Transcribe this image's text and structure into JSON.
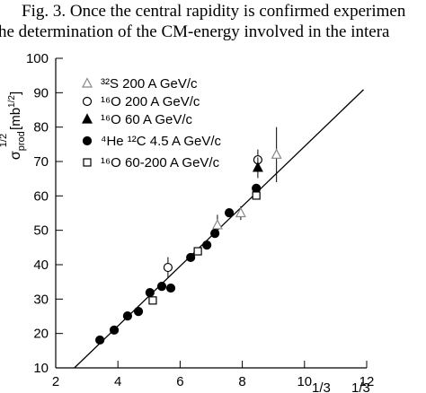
{
  "caption_lines": [
    "Fig. 3.  Once the central rapidity is confirmed experimen",
    "he determination of the CM-energy involved in the intera"
  ],
  "chart_data": {
    "type": "scatter",
    "y_label": {
      "symbol": "σ",
      "sub": "prod",
      "sup": "1/2",
      "unit": "[mb",
      "unit_sup": "1/2",
      "close": "]"
    },
    "x_label_fragments": [
      "1/3",
      "1/3"
    ],
    "xlim": [
      2,
      12
    ],
    "xticks": [
      2,
      4,
      6,
      8,
      10,
      12
    ],
    "ylim": [
      10,
      100
    ],
    "yticks": [
      10,
      20,
      30,
      40,
      50,
      60,
      70,
      80,
      90,
      100
    ],
    "series": [
      {
        "name": "³²S 200 A GeV/c",
        "marker": "triangle-open",
        "color": "#888888",
        "x": [
          7.2,
          7.95,
          9.1
        ],
        "values": [
          51.5,
          55,
          72
        ],
        "errors": [
          3,
          2,
          8
        ]
      },
      {
        "name": "¹⁶O 200 A GeV/c",
        "marker": "circle-open",
        "color": "#000000",
        "x": [
          5.61,
          8.5
        ],
        "values": [
          39.2,
          70.5
        ],
        "errors": [
          3,
          3
        ]
      },
      {
        "name": "¹⁶O  60 A GeV/c",
        "marker": "triangle-filled",
        "color": "#000000",
        "x": [
          8.5
        ],
        "values": [
          68.2
        ],
        "errors": [
          3
        ]
      },
      {
        "name": "⁴He ¹²C 4.5 A GeV/c",
        "marker": "circle-filled",
        "color": "#000000",
        "x": [
          3.42,
          3.88,
          4.31,
          4.66,
          5.03,
          5.41,
          5.7,
          6.34,
          6.86,
          7.12,
          7.58,
          8.45
        ],
        "values": [
          18.1,
          21.0,
          25.1,
          26.4,
          31.9,
          33.7,
          33.2,
          42.1,
          45.7,
          49.1,
          55.1,
          62.2
        ]
      },
      {
        "name": "¹⁶O 60-200 A GeV/c",
        "marker": "square-open",
        "color": "#000000",
        "x": [
          5.12,
          6.57,
          8.45
        ],
        "values": [
          29.6,
          43.9,
          60.1
        ]
      }
    ],
    "fit_line": {
      "x": [
        2.6,
        11.9
      ],
      "y": [
        10,
        90.9
      ]
    }
  }
}
